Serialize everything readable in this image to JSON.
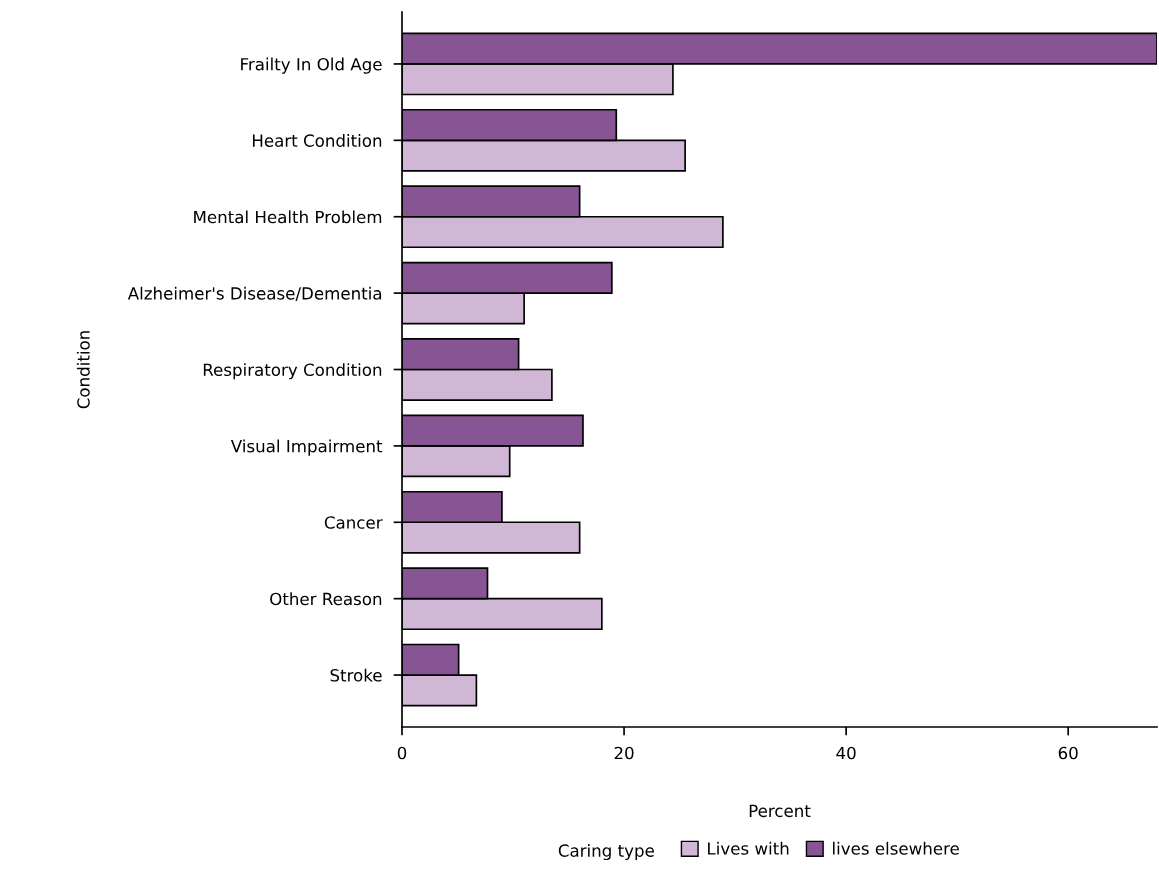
{
  "chart_data": {
    "type": "bar",
    "orientation": "horizontal",
    "categories": [
      "Frailty In Old Age",
      "Heart Condition",
      "Mental Health Problem",
      "Alzheimer's Disease/Dementia",
      "Respiratory Condition",
      "Visual Impairment",
      "Cancer",
      "Other Reason",
      "Stroke"
    ],
    "series": [
      {
        "name": "Lives with",
        "color": "#d0b7d5",
        "values": [
          24.4,
          25.5,
          28.9,
          11.0,
          13.5,
          9.7,
          16.0,
          18.0,
          6.7
        ]
      },
      {
        "name": "lives elsewhere",
        "color": "#875593",
        "values": [
          68.0,
          19.3,
          16.0,
          18.9,
          10.5,
          16.3,
          9.0,
          7.7,
          5.1
        ]
      }
    ],
    "xlabel": "Percent",
    "ylabel": "Condition",
    "legend_title": "Caring type",
    "legend": "bottom",
    "xlim": [
      0,
      68
    ],
    "xticks": [
      0,
      20,
      40,
      60
    ],
    "grid": false
  }
}
